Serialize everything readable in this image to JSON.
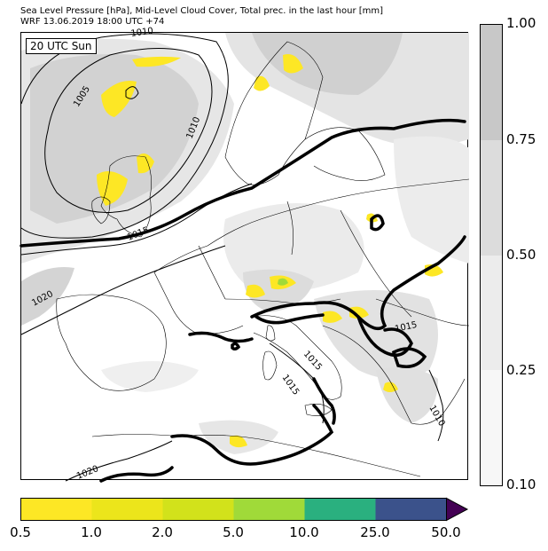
{
  "header": {
    "line1": "Sea Level Pressure [hPa], Mid-Level Cloud Cover, Total prec. in the last hour [mm]",
    "line2": "WRF 13.06.2019 18:00 UTC +74"
  },
  "map": {
    "time_label": "20 UTC Sun",
    "isobar_labels": [
      "1010",
      "1005",
      "1010",
      "1015",
      "1020",
      "1015",
      "1015",
      "1015",
      "1020",
      "1010"
    ]
  },
  "cloud_colorbar": {
    "tick_labels": [
      "1.00",
      "0.75",
      "0.50",
      "0.25",
      "0.10"
    ],
    "colors": [
      "#c8c8c8",
      "#dcdcdc",
      "#ececec",
      "#f7f7f7"
    ]
  },
  "precip_colorbar": {
    "tick_labels": [
      "0.5",
      "1.0",
      "2.0",
      "5.0",
      "10.0",
      "25.0",
      "50.0"
    ],
    "colors": [
      "#fde725",
      "#ece51b",
      "#d2e21b",
      "#a0da39",
      "#2ab07f",
      "#3b528b",
      "#440154"
    ]
  },
  "colors": {
    "precip_light": "#fde725",
    "precip_green": "#a0da39",
    "cloud_high": "#c8c8c8",
    "cloud_mid": "#dcdcdc",
    "cloud_low": "#ececec"
  }
}
